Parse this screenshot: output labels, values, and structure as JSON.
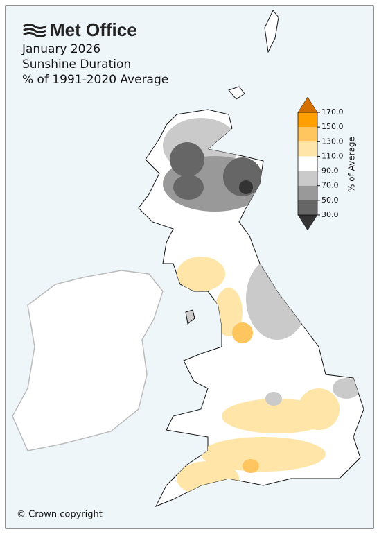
{
  "header": {
    "logo": "Met Office",
    "lines": [
      "January 2026",
      "Sunshine Duration",
      "% of 1991-2020 Average"
    ]
  },
  "legend": {
    "label": "% of Average",
    "ticks": [
      {
        "value": 30,
        "label": "30.0"
      },
      {
        "value": 50,
        "label": "50.0"
      },
      {
        "value": 70,
        "label": "70.0"
      },
      {
        "value": 90,
        "label": "90.0"
      },
      {
        "value": 110,
        "label": "110.0"
      },
      {
        "value": 130,
        "label": "130.0"
      },
      {
        "value": 150,
        "label": "150.0"
      },
      {
        "value": 170,
        "label": "170.0"
      }
    ],
    "under_color": "#333333",
    "colors": [
      "#666666",
      "#999999",
      "#cacaca",
      "#ffffff",
      "#ffe6a8",
      "#ffc55e",
      "#ffa000"
    ],
    "over_color": "#d47000"
  },
  "copyright": "© Crown copyright"
}
